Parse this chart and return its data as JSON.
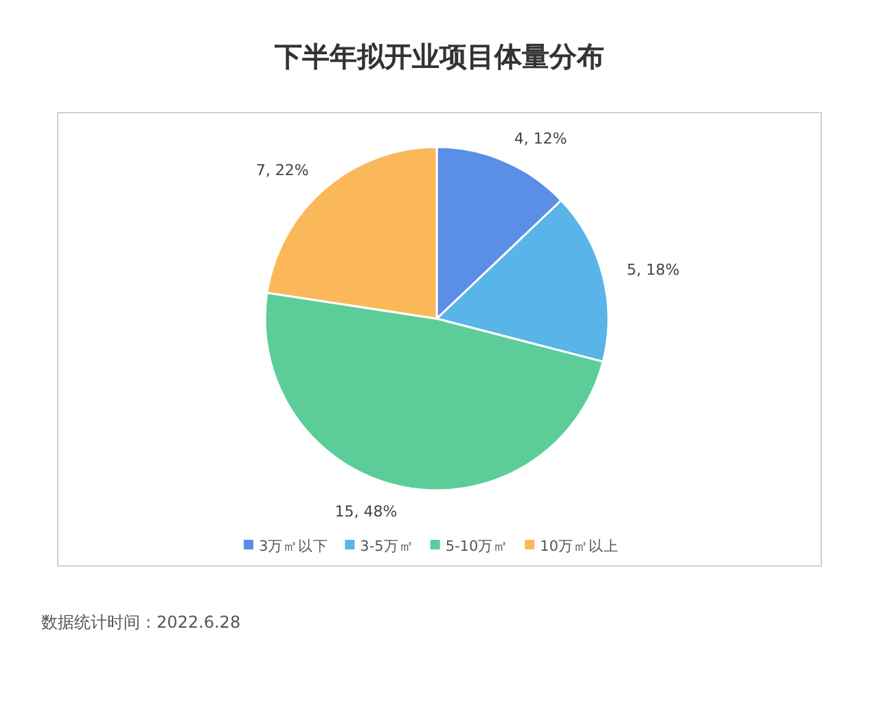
{
  "chart_data": {
    "type": "pie",
    "title": "下半年拟开业项目体量分布",
    "categories": [
      "3万㎡以下",
      "3-5万㎡",
      "5-10万㎡",
      "10万㎡以上"
    ],
    "values": [
      4,
      5,
      15,
      7
    ],
    "value_labels": [
      "4, 12%",
      "5, 18%",
      "15, 48%",
      "7, 22%"
    ],
    "colors": [
      "#5b8ee6",
      "#59b4e8",
      "#5ccd98",
      "#fbb85a"
    ],
    "legend": "bottom",
    "annotations": [
      "数据统计时间：2022.6.28"
    ]
  }
}
